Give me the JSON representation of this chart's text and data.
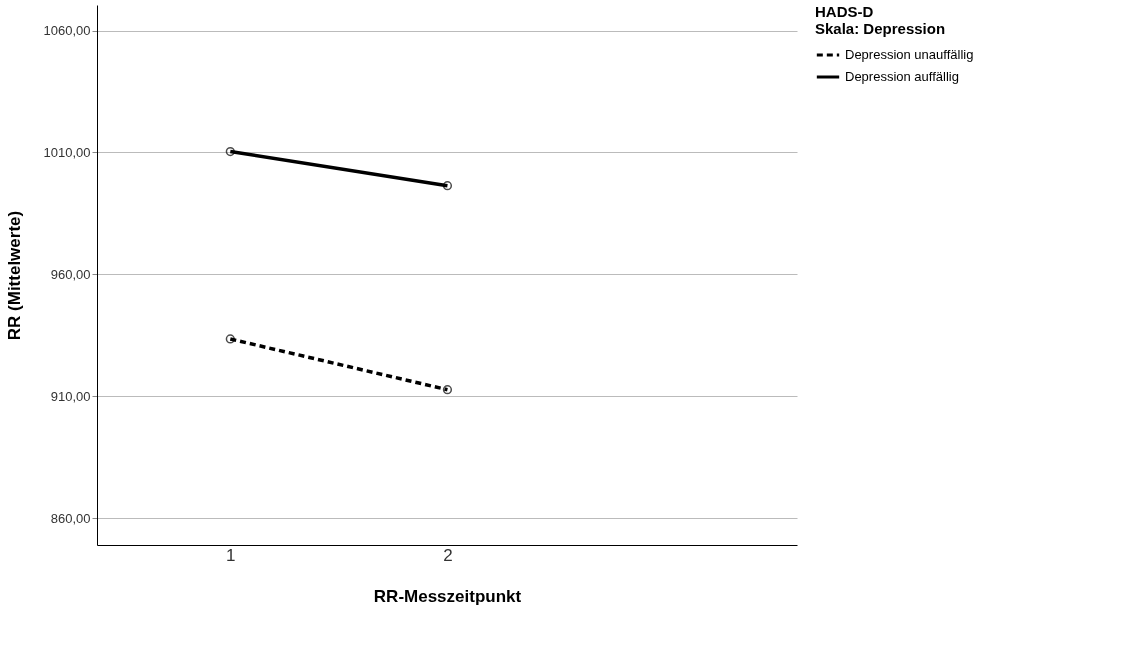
{
  "chart_data": {
    "type": "line",
    "xlabel": "RR-Messzeitpunkt",
    "ylabel": "RR (Mittelwerte)",
    "legend_title": "HADS-D\nSkala: Depression",
    "categories": [
      "1",
      "2"
    ],
    "series": [
      {
        "name": "Depression unauffällig",
        "color": "#000000",
        "line_style": "dashed",
        "values": [
          933.5,
          912.7
        ]
      },
      {
        "name": "Depression auffällig",
        "color": "#000000",
        "line_style": "solid",
        "values": [
          1010.4,
          996.4
        ]
      }
    ],
    "ylim": [
      849,
      1070.5
    ],
    "yticks": [
      {
        "value": 860,
        "label": "860,00"
      },
      {
        "value": 910,
        "label": "910,00"
      },
      {
        "value": 960,
        "label": "960,00"
      },
      {
        "value": 1010,
        "label": "1010,00"
      },
      {
        "value": 1060,
        "label": "1060,00"
      }
    ],
    "grid": "y",
    "legend": "top right",
    "marker": "circle"
  }
}
